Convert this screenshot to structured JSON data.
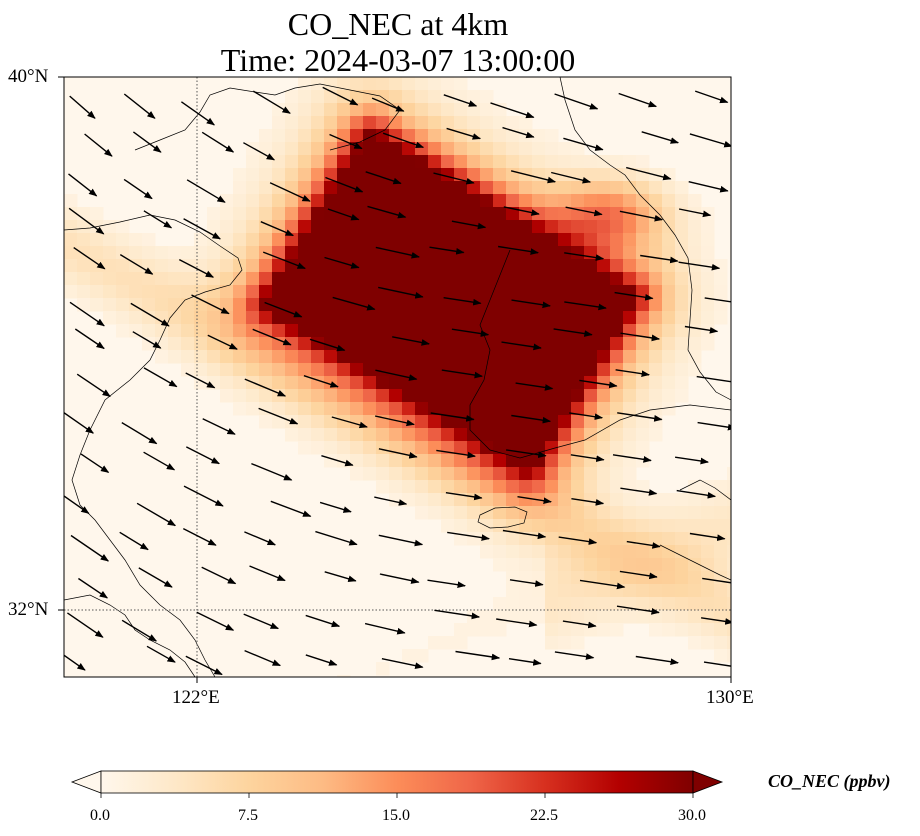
{
  "title": {
    "line1": "CO_NEC at 4km",
    "line2": "Time: 2024-03-07 13:00:00"
  },
  "axes": {
    "lat_ticks": [
      "40°N",
      "32°N"
    ],
    "lon_ticks": [
      "122°E",
      "130°E"
    ],
    "extent": {
      "lon": [
        120,
        130
      ],
      "lat": [
        31,
        40
      ]
    },
    "gridlines": "dotted at 122°E and 32°N"
  },
  "colorbar": {
    "label": "CO_NEC (ppbv)",
    "ticks": [
      "0.0",
      "7.5",
      "15.0",
      "22.5",
      "30.0"
    ],
    "range": [
      0,
      30
    ],
    "extend": "both",
    "colormap": [
      "#fff7ec",
      "#fee8c8",
      "#fdd49e",
      "#fdbb84",
      "#fc8d59",
      "#ef6548",
      "#d7301f",
      "#b30000",
      "#7f0000"
    ]
  },
  "chart_data": {
    "type": "heatmap",
    "title": "CO_NEC at 4km\nTime: 2024-03-07 13:00:00",
    "variable": "CO_NEC",
    "units": "ppbv",
    "plume": {
      "max_region_lon": [
        123.0,
        128.0
      ],
      "max_region_lat": [
        34.5,
        38.8
      ],
      "peak_value": 30
    },
    "wind": "arrows pointing east-southeast across domain"
  }
}
